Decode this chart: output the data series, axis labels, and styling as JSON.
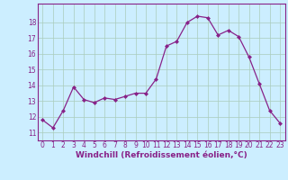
{
  "x": [
    0,
    1,
    2,
    3,
    4,
    5,
    6,
    7,
    8,
    9,
    10,
    11,
    12,
    13,
    14,
    15,
    16,
    17,
    18,
    19,
    20,
    21,
    22,
    23
  ],
  "y": [
    11.8,
    11.3,
    12.4,
    13.9,
    13.1,
    12.9,
    13.2,
    13.1,
    13.3,
    13.5,
    13.5,
    14.4,
    16.5,
    16.8,
    18.0,
    18.4,
    18.3,
    17.2,
    17.5,
    17.1,
    15.8,
    14.1,
    12.4,
    11.6
  ],
  "line_color": "#882288",
  "marker": "D",
  "marker_size": 2.0,
  "bg_color": "#cceeff",
  "grid_color": "#aaccbb",
  "xlabel": "Windchill (Refroidissement éolien,°C)",
  "ylim": [
    10.5,
    19.2
  ],
  "yticks": [
    11,
    12,
    13,
    14,
    15,
    16,
    17,
    18
  ],
  "xticks": [
    0,
    1,
    2,
    3,
    4,
    5,
    6,
    7,
    8,
    9,
    10,
    11,
    12,
    13,
    14,
    15,
    16,
    17,
    18,
    19,
    20,
    21,
    22,
    23
  ],
  "tick_fontsize": 5.5,
  "label_fontsize": 6.5
}
